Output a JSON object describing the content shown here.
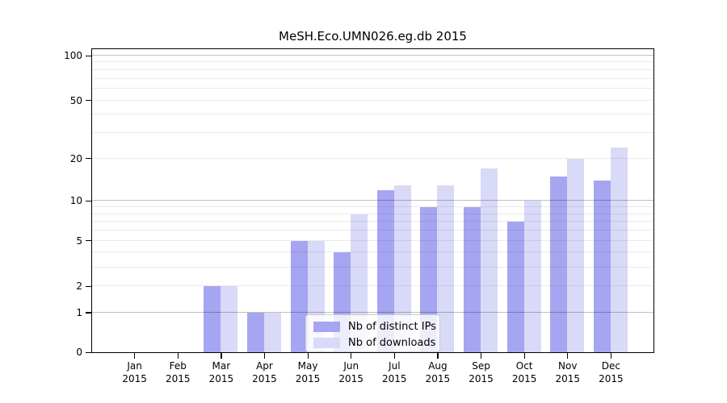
{
  "chart_data": {
    "type": "bar",
    "title": "MeSH.Eco.UMN026.eg.db 2015",
    "categories": [
      "Jan",
      "Feb",
      "Mar",
      "Apr",
      "May",
      "Jun",
      "Jul",
      "Aug",
      "Sep",
      "Oct",
      "Nov",
      "Dec"
    ],
    "year_label": "2015",
    "series": [
      {
        "name": "Nb of distinct IPs",
        "color": "#a5a5f1",
        "values": [
          0,
          0,
          2,
          1,
          5,
          4,
          12,
          9,
          9,
          7,
          15,
          14
        ]
      },
      {
        "name": "Nb of downloads",
        "color": "#d9d9f8",
        "values": [
          0,
          0,
          2,
          1,
          5,
          8,
          13,
          13,
          17,
          10,
          20,
          24
        ]
      }
    ],
    "yscale": "log1p",
    "ylim": [
      0,
      110
    ],
    "ytick_values": [
      0,
      1,
      2,
      5,
      10,
      20,
      50,
      100
    ],
    "ytick_labels": [
      "0",
      "1",
      "2",
      "5",
      "10",
      "20",
      "50",
      "100"
    ],
    "major_grid_values": [
      1,
      10,
      100
    ],
    "minor_grid_values": [
      2,
      3,
      4,
      5,
      6,
      7,
      8,
      9,
      20,
      30,
      40,
      50,
      60,
      70,
      80,
      90
    ],
    "grid": true,
    "legend_position": "lower center",
    "xlabel": "",
    "ylabel": ""
  }
}
